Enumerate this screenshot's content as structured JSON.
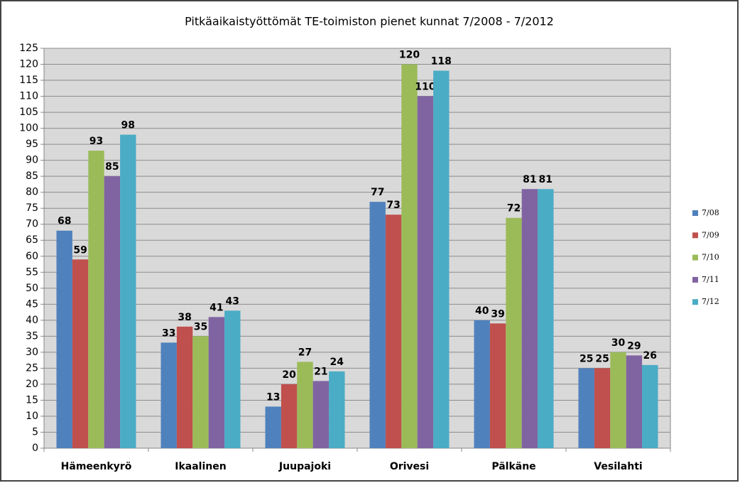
{
  "chart_data": {
    "type": "bar",
    "title": "Pitkäaikaistyöttömät TE-toimiston pienet kunnat 7/2008 - 7/2012",
    "categories": [
      "Hämeenkyrö",
      "Ikaalinen",
      "Juupajoki",
      "Orivesi",
      "Pälkäne",
      "Vesilahti"
    ],
    "series": [
      {
        "name": "7/08",
        "color": "#4f81bd",
        "values": [
          68,
          33,
          13,
          77,
          40,
          25
        ]
      },
      {
        "name": "7/09",
        "color": "#c0504d",
        "values": [
          59,
          38,
          20,
          73,
          39,
          25
        ]
      },
      {
        "name": "7/10",
        "color": "#9bbb59",
        "values": [
          93,
          35,
          27,
          120,
          72,
          30
        ]
      },
      {
        "name": "7/11",
        "color": "#8064a2",
        "values": [
          85,
          41,
          21,
          110,
          81,
          29
        ]
      },
      {
        "name": "7/12",
        "color": "#4bacc6",
        "values": [
          98,
          43,
          24,
          118,
          81,
          26
        ]
      }
    ],
    "ylim": [
      0,
      125
    ],
    "yticks": [
      0,
      5,
      10,
      15,
      20,
      25,
      30,
      35,
      40,
      45,
      50,
      55,
      60,
      65,
      70,
      75,
      80,
      85,
      90,
      95,
      100,
      105,
      110,
      115,
      120,
      125
    ],
    "grid": true,
    "legend": "right"
  }
}
